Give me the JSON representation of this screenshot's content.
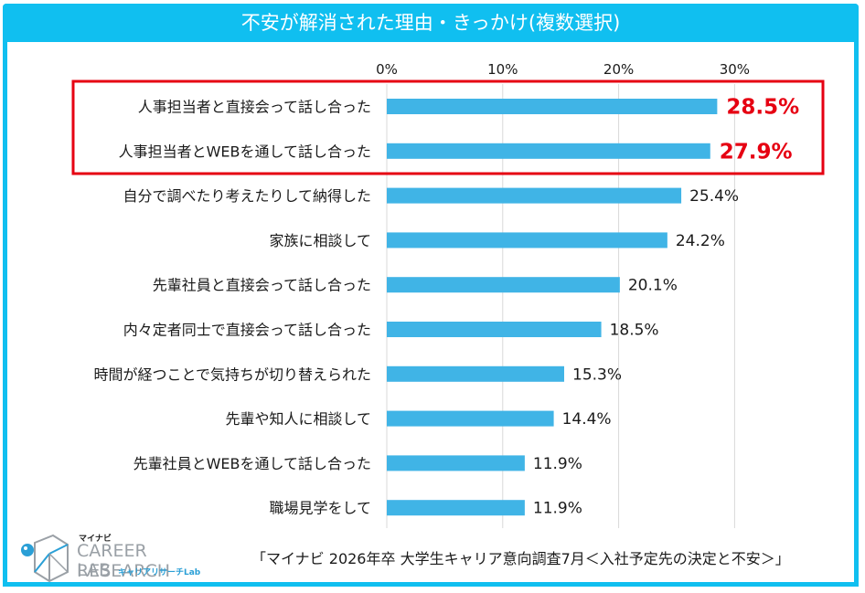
{
  "header": {
    "title": "不安が解消された理由・きっかけ(複数選択)"
  },
  "colors": {
    "frame": "#10bff0",
    "bar": "#40b4e6",
    "highlight": "#e60012",
    "grid": "#d9d9d9"
  },
  "chart_data": {
    "type": "bar",
    "orientation": "horizontal",
    "title": "不安が解消された理由・きっかけ(複数選択)",
    "xlabel": "",
    "ylabel": "",
    "xlim": [
      0,
      35
    ],
    "ticks": [
      0,
      10,
      20,
      30
    ],
    "tick_labels": [
      "0%",
      "10%",
      "20%",
      "30%"
    ],
    "grid": true,
    "categories": [
      "人事担当者と直接会って話し合った",
      "人事担当者とWEBを通して話し合った",
      "自分で調べたり考えたりして納得した",
      "家族に相談して",
      "先輩社員と直接会って話し合った",
      "内々定者同士で直接会って話し合った",
      "時間が経つことで気持ちが切り替えられた",
      "先輩や知人に相談して",
      "先輩社員とWEBを通して話し合った",
      "職場見学をして"
    ],
    "values": [
      28.5,
      27.9,
      25.4,
      24.2,
      20.1,
      18.5,
      15.3,
      14.4,
      11.9,
      11.9
    ],
    "value_labels": [
      "28.5%",
      "27.9%",
      "25.4%",
      "24.2%",
      "20.1%",
      "18.5%",
      "15.3%",
      "14.4%",
      "11.9%",
      "11.9%"
    ],
    "highlighted": [
      0,
      1
    ],
    "annotations": [
      "red box around top 2 items"
    ]
  },
  "footer": {
    "source": "「マイナビ 2026年卒 大学生キャリア意向調査7月＜入社予定先の決定と不安＞」",
    "logo": {
      "brand_small": "マイナビ",
      "line1": "CAREER RESEARCH",
      "line2": "LAB",
      "sub": "キャリアリサーチLab"
    }
  }
}
